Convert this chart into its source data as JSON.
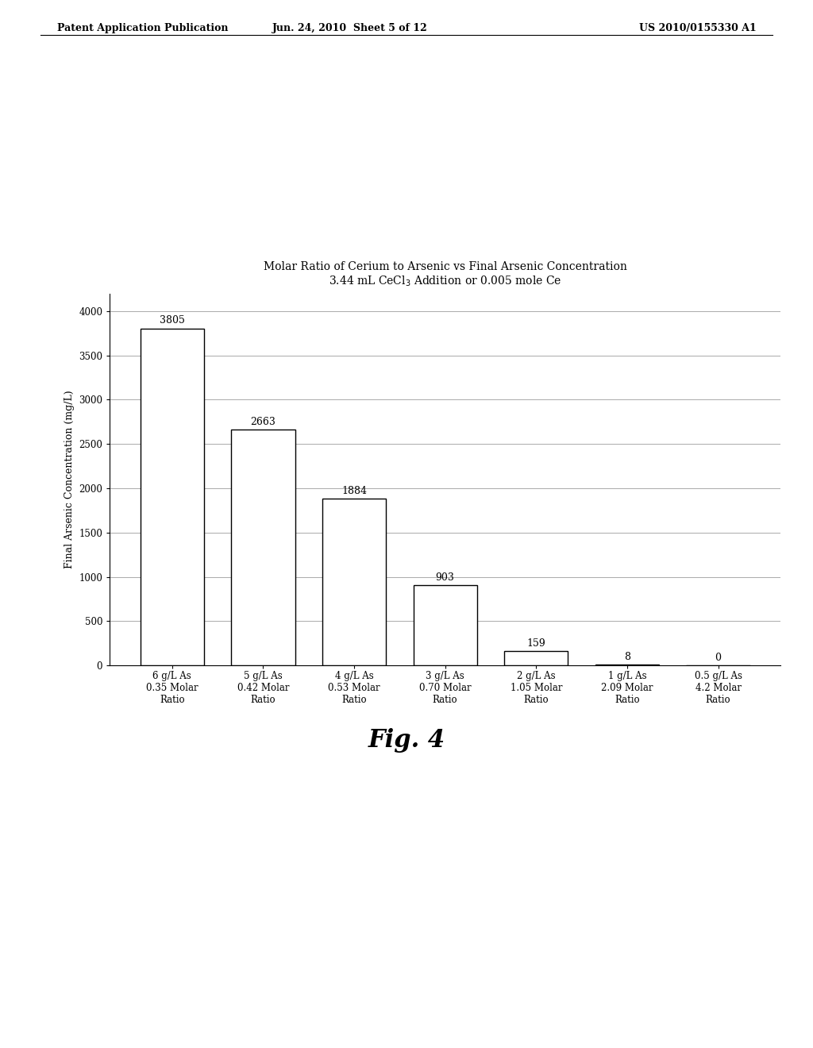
{
  "title_line1": "Molar Ratio of Cerium to Arsenic vs Final Arsenic Concentration",
  "title_line2": "3.44 mL CeCl$_3$ Addition or 0.005 mole Ce",
  "ylabel": "Final Arsenic Concentration (mg/L)",
  "categories": [
    "6 g/L As\n0.35 Molar\nRatio",
    "5 g/L As\n0.42 Molar\nRatio",
    "4 g/L As\n0.53 Molar\nRatio",
    "3 g/L As\n0.70 Molar\nRatio",
    "2 g/L As\n1.05 Molar\nRatio",
    "1 g/L As\n2.09 Molar\nRatio",
    "0.5 g/L As\n4.2 Molar\nRatio"
  ],
  "values": [
    3805,
    2663,
    1884,
    903,
    159,
    8,
    0
  ],
  "bar_color": "#ffffff",
  "bar_edgecolor": "#000000",
  "ylim": [
    0,
    4200
  ],
  "yticks": [
    0,
    500,
    1000,
    1500,
    2000,
    2500,
    3000,
    3500,
    4000
  ],
  "header_left": "Patent Application Publication",
  "header_center": "Jun. 24, 2010  Sheet 5 of 12",
  "header_right": "US 2010/0155330 A1",
  "fig_caption": "Fig. 4",
  "background_color": "#ffffff",
  "grid_color": "#888888",
  "label_fontsize": 9,
  "title_fontsize": 10,
  "tick_fontsize": 8.5,
  "header_fontsize": 9,
  "caption_fontsize": 22,
  "value_label_fontsize": 9
}
